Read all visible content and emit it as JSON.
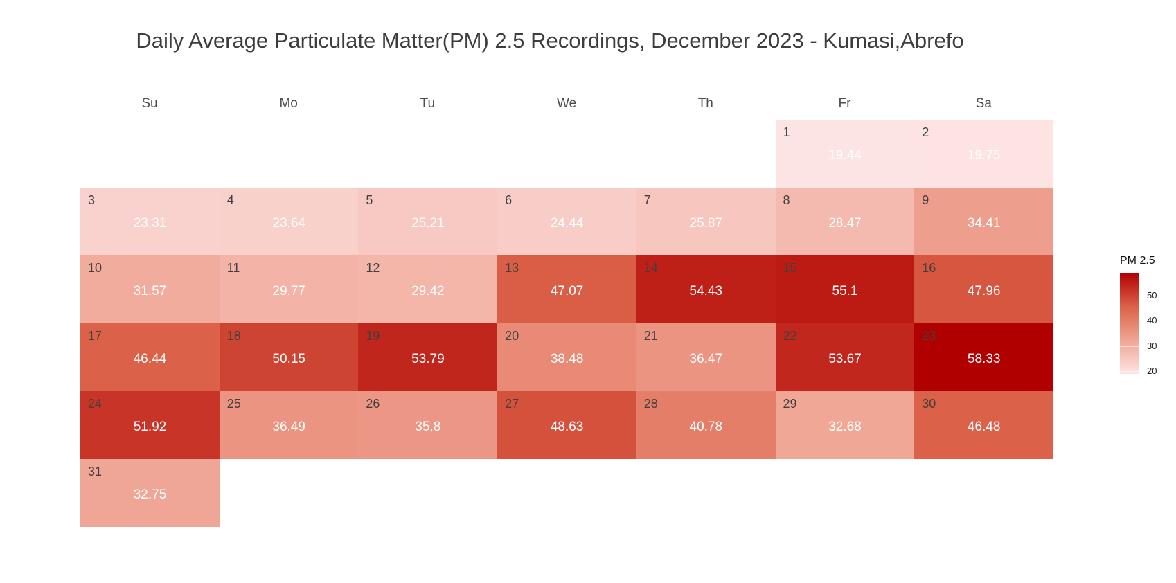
{
  "chart_data": {
    "type": "heatmap",
    "title": "Daily Average Particulate Matter(PM) 2.5 Recordings, December 2023 - Kumasi,Abrefo",
    "weekdays": [
      "Su",
      "Mo",
      "Tu",
      "We",
      "Th",
      "Fr",
      "Sa"
    ],
    "first_weekday_index": 5,
    "days": [
      {
        "day": "1",
        "value": 19.44
      },
      {
        "day": "2",
        "value": 19.75
      },
      {
        "day": "3",
        "value": 23.31
      },
      {
        "day": "4",
        "value": 23.64
      },
      {
        "day": "5",
        "value": 25.21
      },
      {
        "day": "6",
        "value": 24.44
      },
      {
        "day": "7",
        "value": 25.87
      },
      {
        "day": "8",
        "value": 28.47
      },
      {
        "day": "9",
        "value": 34.41
      },
      {
        "day": "10",
        "value": 31.57
      },
      {
        "day": "11",
        "value": 29.77
      },
      {
        "day": "12",
        "value": 29.42
      },
      {
        "day": "13",
        "value": 47.07
      },
      {
        "day": "14",
        "value": 54.43
      },
      {
        "day": "15",
        "value": 55.1
      },
      {
        "day": "16",
        "value": 47.96
      },
      {
        "day": "17",
        "value": 46.44
      },
      {
        "day": "18",
        "value": 50.15
      },
      {
        "day": "19",
        "value": 53.79
      },
      {
        "day": "20",
        "value": 38.48
      },
      {
        "day": "21",
        "value": 36.47
      },
      {
        "day": "22",
        "value": 53.67
      },
      {
        "day": "23",
        "value": 58.33
      },
      {
        "day": "24",
        "value": 51.92
      },
      {
        "day": "25",
        "value": 36.49
      },
      {
        "day": "26",
        "value": 35.8
      },
      {
        "day": "27",
        "value": 48.63
      },
      {
        "day": "28",
        "value": 40.78
      },
      {
        "day": "29",
        "value": 32.68
      },
      {
        "day": "30",
        "value": 46.48
      },
      {
        "day": "31",
        "value": 32.75
      }
    ],
    "legend": {
      "title": "PM 2.5",
      "ticks": [
        "20",
        "30",
        "40",
        "50"
      ],
      "range": [
        19.44,
        58.33
      ],
      "low_color": "#fde4e4",
      "high_color": "#b00000"
    }
  }
}
